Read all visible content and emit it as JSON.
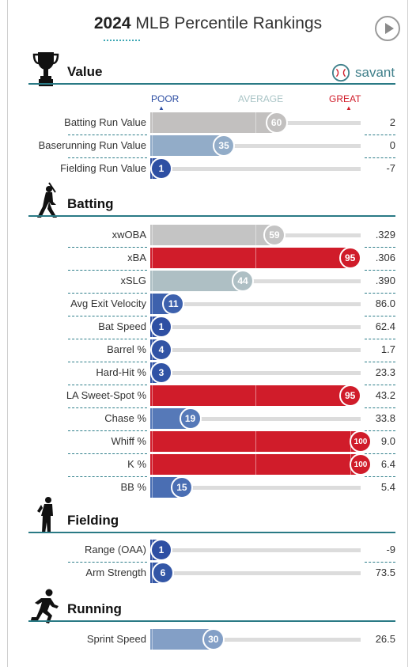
{
  "header": {
    "title_year": "2024",
    "title_rest": "MLB Percentile Rankings"
  },
  "brand": {
    "name": "savant",
    "color": "#3f7f8a"
  },
  "legend": {
    "poor": "POOR",
    "average": "AVERAGE",
    "great": "GREAT",
    "poor_color": "#2e4fa3",
    "average_color": "#a9c4c6",
    "great_color": "#d01c2a"
  },
  "sections": [
    {
      "title": "Value",
      "icon": "trophy-icon"
    },
    {
      "title": "Batting",
      "icon": "batter-icon"
    },
    {
      "title": "Fielding",
      "icon": "fielder-icon"
    },
    {
      "title": "Running",
      "icon": "runner-icon"
    }
  ],
  "chart_data": {
    "type": "bar",
    "title": "2024 MLB Percentile Rankings",
    "xlim": [
      0,
      100
    ],
    "x_scale_labels": [
      "POOR",
      "AVERAGE",
      "GREAT"
    ],
    "color_scale": {
      "low": "#2e4fa3",
      "mid": "#c4c4c4",
      "high": "#d01c2a"
    },
    "groups": [
      {
        "name": "Value",
        "rows": [
          {
            "metric": "Batting Run Value",
            "percentile": 60,
            "stat": "2",
            "color": "#c2c0bf"
          },
          {
            "metric": "Baserunning Run Value",
            "percentile": 35,
            "stat": "0",
            "color": "#92acc8"
          },
          {
            "metric": "Fielding Run Value",
            "percentile": 1,
            "stat": "-7",
            "color": "#2e4fa3"
          }
        ]
      },
      {
        "name": "Batting",
        "rows": [
          {
            "metric": "xwOBA",
            "percentile": 59,
            "stat": ".329",
            "color": "#c4c4c4"
          },
          {
            "metric": "xBA",
            "percentile": 95,
            "stat": ".306",
            "color": "#d01c2a"
          },
          {
            "metric": "xSLG",
            "percentile": 44,
            "stat": ".390",
            "color": "#aebfc4"
          },
          {
            "metric": "Avg Exit Velocity",
            "percentile": 11,
            "stat": "86.0",
            "color": "#3d61ad"
          },
          {
            "metric": "Bat Speed",
            "percentile": 1,
            "stat": "62.4",
            "color": "#2e4fa3"
          },
          {
            "metric": "Barrel %",
            "percentile": 4,
            "stat": "1.7",
            "color": "#3153a5"
          },
          {
            "metric": "Hard-Hit %",
            "percentile": 3,
            "stat": "23.3",
            "color": "#3153a5"
          },
          {
            "metric": "LA Sweet-Spot %",
            "percentile": 95,
            "stat": "43.2",
            "color": "#d01c2a"
          },
          {
            "metric": "Chase %",
            "percentile": 19,
            "stat": "33.8",
            "color": "#5679b8"
          },
          {
            "metric": "Whiff %",
            "percentile": 100,
            "stat": "9.0",
            "color": "#d01c2a"
          },
          {
            "metric": "K %",
            "percentile": 100,
            "stat": "6.4",
            "color": "#d01c2a"
          },
          {
            "metric": "BB %",
            "percentile": 15,
            "stat": "5.4",
            "color": "#4a6eb3"
          }
        ]
      },
      {
        "name": "Fielding",
        "rows": [
          {
            "metric": "Range (OAA)",
            "percentile": 1,
            "stat": "-9",
            "color": "#2e4fa3"
          },
          {
            "metric": "Arm Strength",
            "percentile": 6,
            "stat": "73.5",
            "color": "#3356a6"
          }
        ]
      },
      {
        "name": "Running",
        "rows": [
          {
            "metric": "Sprint Speed",
            "percentile": 30,
            "stat": "26.5",
            "color": "#839fc6"
          }
        ]
      }
    ]
  }
}
